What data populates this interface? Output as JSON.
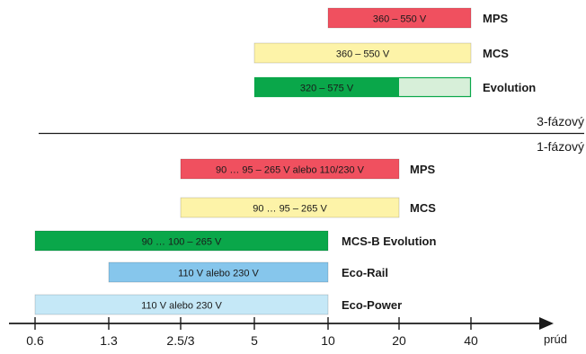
{
  "section_labels": {
    "three_phase": "3-fázový",
    "single_phase": "1-fázový"
  },
  "axis": {
    "ticks": [
      "0.6",
      "1.3",
      "2.5/3",
      "5",
      "10",
      "20",
      "40"
    ],
    "label": "prúd"
  },
  "bars": [
    {
      "product": "MPS",
      "range": "360 – 550 V",
      "start_tick": 4,
      "end_tick": 6,
      "color": "#f0505f",
      "section": "3-fázový"
    },
    {
      "product": "MCS",
      "range": "360 – 550 V",
      "start_tick": 3,
      "end_tick": 6,
      "color": "#fdf3a8",
      "section": "3-fázový"
    },
    {
      "product": "Evolution",
      "range": "320 – 575 V",
      "start_tick": 3,
      "end_tick": 6,
      "split_tick": 5,
      "color": "#0aa74a",
      "extension_color": "#d7efd9",
      "section": "3-fázový"
    },
    {
      "product": "MPS",
      "range": "90 … 95 – 265 V alebo 110/230 V",
      "start_tick": 2,
      "end_tick": 5,
      "color": "#f0505f",
      "section": "1-fázový"
    },
    {
      "product": "MCS",
      "range": "90 … 95 – 265 V",
      "start_tick": 2,
      "end_tick": 5,
      "color": "#fdf3a8",
      "section": "1-fázový"
    },
    {
      "product": "MCS-B Evolution",
      "range": "90 … 100 – 265 V",
      "start_tick": 0,
      "end_tick": 4,
      "color": "#0aa74a",
      "section": "1-fázový"
    },
    {
      "product": "Eco-Rail",
      "range": "110 V alebo 230 V",
      "start_tick": 1,
      "end_tick": 4,
      "color": "#86c6ec",
      "section": "1-fázový"
    },
    {
      "product": "Eco-Power",
      "range": "110 V alebo 230 V",
      "start_tick": 0,
      "end_tick": 4,
      "color": "#c5e8f7",
      "section": "1-fázový"
    }
  ]
}
